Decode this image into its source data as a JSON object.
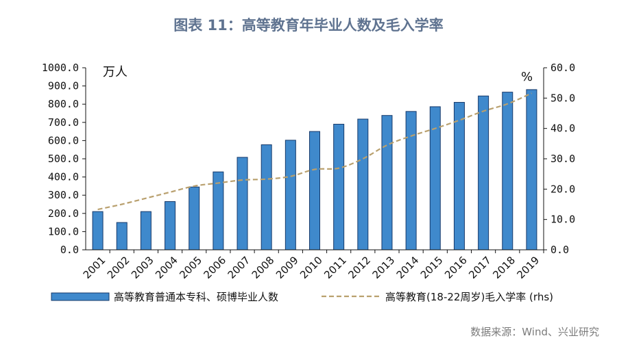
{
  "title": "图表 11：高等教育年毕业人数及毛入学率",
  "source": "数据来源：Wind、兴业研究",
  "colors": {
    "bar": "#3f89cc",
    "bar_edge": "#16396a",
    "line": "#b9a06e",
    "title": "#5f7390",
    "axis": "#111111"
  },
  "chart_data": {
    "type": "bar",
    "title": "图表 11：高等教育年毕业人数及毛入学率",
    "categories": [
      "2001",
      "2002",
      "2003",
      "2004",
      "2005",
      "2006",
      "2007",
      "2008",
      "2009",
      "2010",
      "2011",
      "2012",
      "2013",
      "2014",
      "2015",
      "2016",
      "2017",
      "2018",
      "2019"
    ],
    "left_axis": {
      "unit": "万人",
      "ylim": [
        0,
        1000
      ],
      "ticks": [
        "0.0",
        "100.0",
        "200.0",
        "300.0",
        "400.0",
        "500.0",
        "600.0",
        "700.0",
        "800.0",
        "900.0",
        "1000.0"
      ]
    },
    "right_axis": {
      "unit": "%",
      "ylim": [
        0,
        60
      ],
      "ticks": [
        "0.0",
        "10.0",
        "20.0",
        "30.0",
        "40.0",
        "50.0",
        "60.0"
      ]
    },
    "grid": false,
    "legend_position": "bottom",
    "series": [
      {
        "name": "高等教育普通本专科、硕博毕业人数",
        "type": "bar",
        "axis": "left",
        "values": [
          210,
          150,
          210,
          265,
          345,
          428,
          508,
          577,
          602,
          650,
          690,
          718,
          738,
          760,
          786,
          810,
          845,
          866,
          880
        ]
      },
      {
        "name": "高等教育(18-22周岁)毛入学率 (rhs)",
        "type": "line",
        "style": "dashed",
        "axis": "right",
        "values": [
          13.3,
          15.0,
          17.0,
          19.0,
          21.0,
          22.0,
          23.0,
          23.3,
          24.2,
          26.5,
          26.9,
          30.0,
          34.5,
          37.5,
          40.0,
          42.7,
          45.7,
          48.1,
          51.6
        ]
      }
    ]
  }
}
